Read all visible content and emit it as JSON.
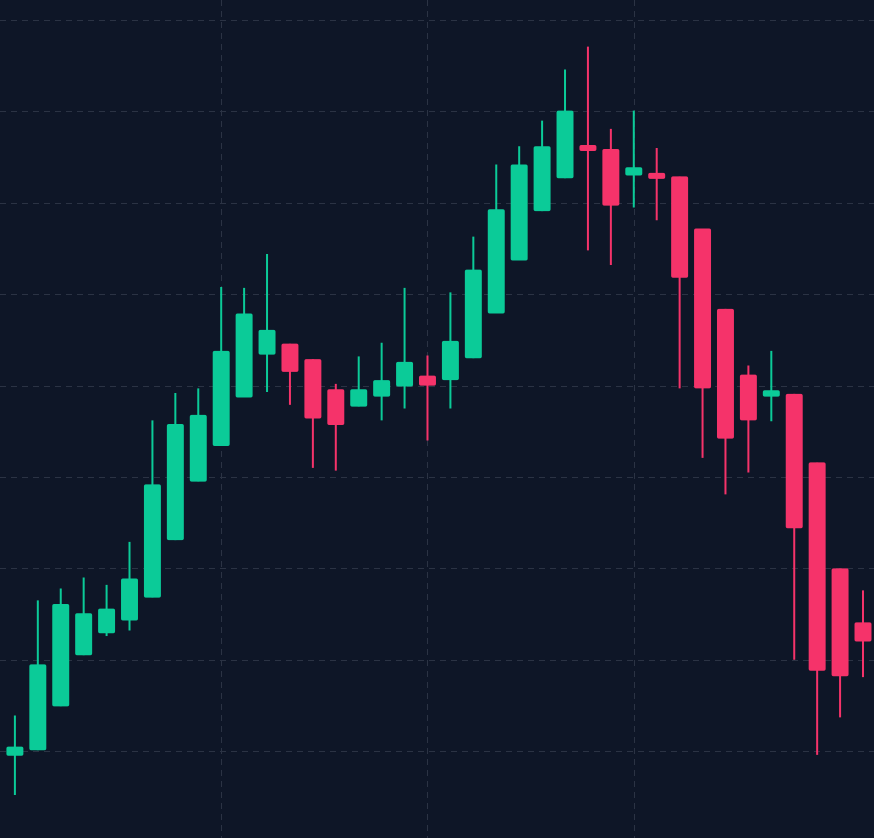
{
  "chart_data": {
    "type": "candlestick",
    "x": [
      0,
      1,
      2,
      3,
      4,
      5,
      6,
      7,
      8,
      9,
      10,
      11,
      12,
      13,
      14,
      15,
      16,
      17,
      18,
      19,
      20,
      21,
      22,
      23,
      24,
      25,
      26,
      27,
      28,
      29,
      30,
      31,
      32,
      33,
      34,
      35,
      36,
      37
    ],
    "open": [
      -0.5,
      0.1,
      4.9,
      10.5,
      12.9,
      14.3,
      16.8,
      23.1,
      29.5,
      33.4,
      38.7,
      43.4,
      44.6,
      42.9,
      39.6,
      37.7,
      38.8,
      39.9,
      41.1,
      40.6,
      43.0,
      47.9,
      53.7,
      59.1,
      62.7,
      66.2,
      65.9,
      63.0,
      63.2,
      62.9,
      57.2,
      48.4,
      41.2,
      38.8,
      39.1,
      31.6,
      20.0,
      14.1
    ],
    "high": [
      3.9,
      16.5,
      17.8,
      19.0,
      18.2,
      22.9,
      36.2,
      39.2,
      39.7,
      50.8,
      50.7,
      54.4,
      44.6,
      42.9,
      40.2,
      43.2,
      44.7,
      50.7,
      43.3,
      50.2,
      56.3,
      64.2,
      66.2,
      69.0,
      74.6,
      77.1,
      68.1,
      70.1,
      66.0,
      62.9,
      57.2,
      48.4,
      42.2,
      43.8,
      39.1,
      31.6,
      20.0,
      17.6
    ],
    "low": [
      -4.8,
      0.1,
      4.9,
      10.5,
      12.6,
      13.2,
      16.8,
      23.1,
      29.5,
      33.4,
      38.7,
      39.3,
      37.9,
      31.0,
      30.7,
      37.7,
      36.2,
      37.5,
      34.0,
      37.5,
      43.0,
      47.9,
      53.7,
      59.1,
      62.7,
      54.8,
      53.2,
      59.5,
      58.1,
      39.7,
      32.1,
      28.1,
      30.5,
      36.1,
      10.0,
      -0.4,
      3.7,
      8.1
    ],
    "close": [
      0.5,
      9.5,
      16.1,
      15.1,
      15.6,
      18.9,
      29.2,
      35.8,
      36.8,
      43.8,
      47.9,
      46.1,
      41.5,
      36.4,
      35.7,
      39.6,
      40.6,
      42.6,
      40.0,
      44.9,
      52.7,
      59.3,
      64.2,
      66.2,
      70.1,
      65.8,
      59.7,
      63.9,
      62.7,
      51.8,
      39.7,
      34.2,
      36.2,
      39.5,
      24.4,
      8.8,
      8.2,
      12.0
    ],
    "up_color": "#0bcb98",
    "down_color": "#f5336a",
    "xlim": [
      -0.65,
      37.48
    ],
    "xticks": [
      9,
      18,
      27
    ],
    "ylim": [
      -9.5,
      82.2
    ],
    "yticks": [
      0,
      10,
      20,
      30,
      40,
      50,
      60,
      70,
      80
    ],
    "grid": true
  }
}
